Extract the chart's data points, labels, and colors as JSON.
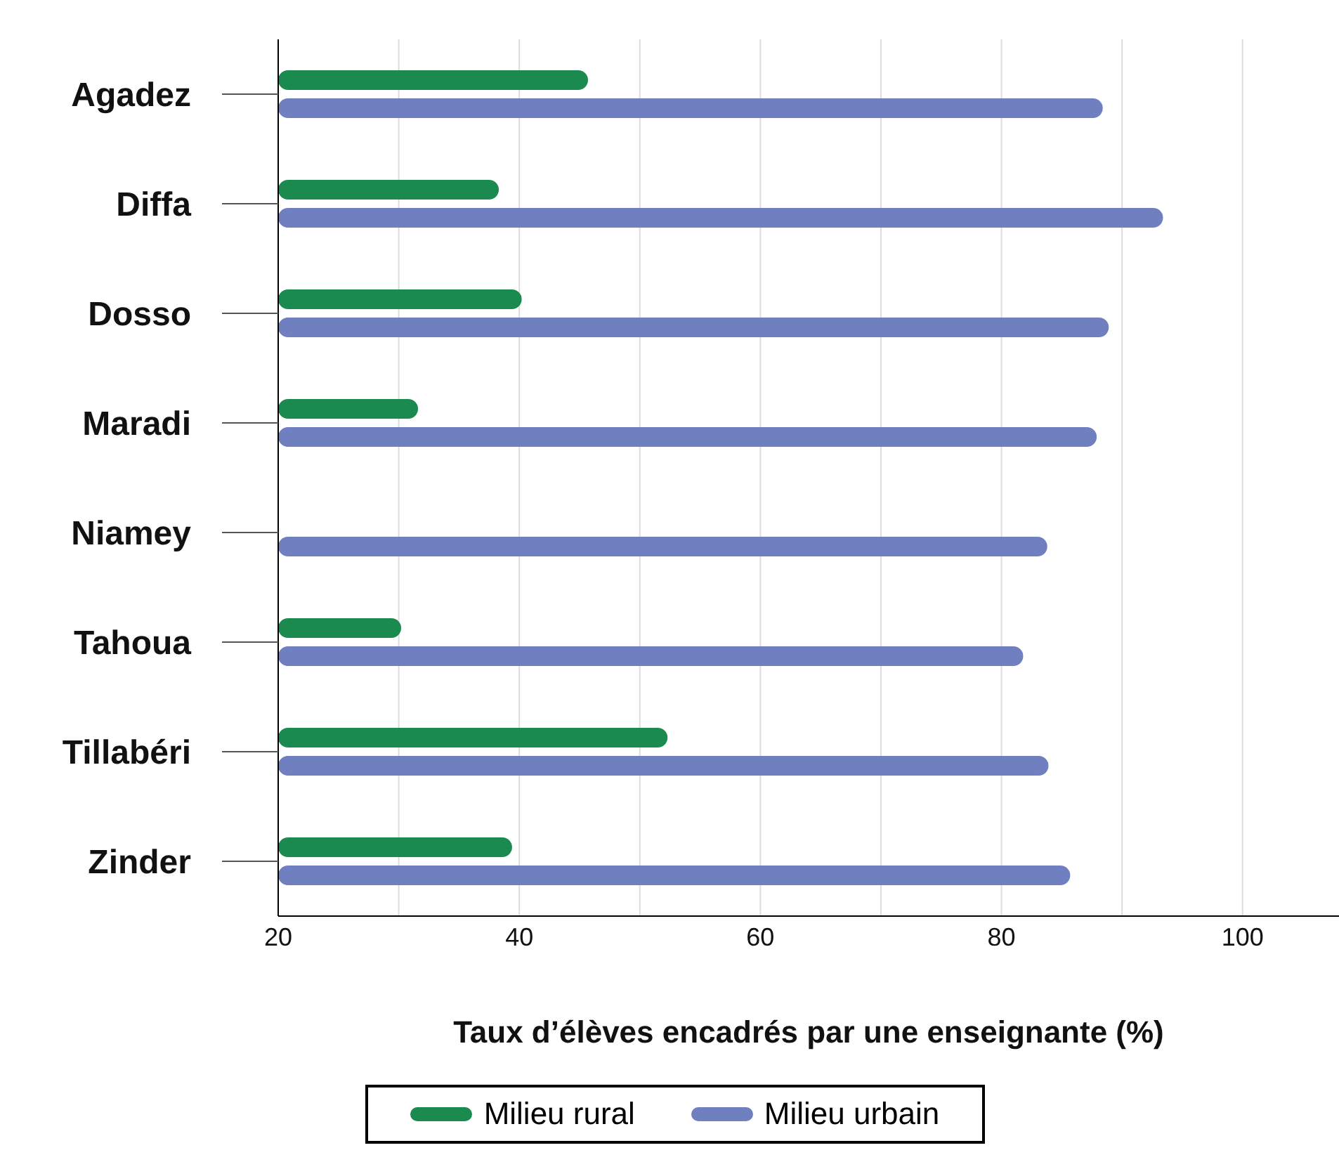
{
  "chart_data": {
    "type": "bar",
    "orientation": "horizontal",
    "categories": [
      "Agadez",
      "Diffa",
      "Dosso",
      "Maradi",
      "Niamey",
      "Tahoua",
      "Tillabéri",
      "Zinder"
    ],
    "series": [
      {
        "name": "Milieu rural",
        "color": "#1a8a4f",
        "values": [
          45.7,
          38.3,
          40.2,
          31.6,
          null,
          30.2,
          52.3,
          39.4
        ]
      },
      {
        "name": "Milieu urbain",
        "color": "#6f7fc0",
        "values": [
          88.4,
          93.4,
          88.9,
          87.9,
          83.8,
          81.8,
          83.9,
          85.7
        ]
      }
    ],
    "xlim": [
      20,
      108
    ],
    "xticks": [
      20,
      {
        "value": 30,
        "label": null
      },
      40,
      {
        "value": 50,
        "label": null
      },
      60,
      {
        "value": 70,
        "label": null
      },
      80,
      {
        "value": 90,
        "label": null
      },
      100
    ],
    "xlabel": "Taux d’élèves encadrés par une enseignante (%)",
    "grid": "x",
    "legend": "bottom"
  }
}
